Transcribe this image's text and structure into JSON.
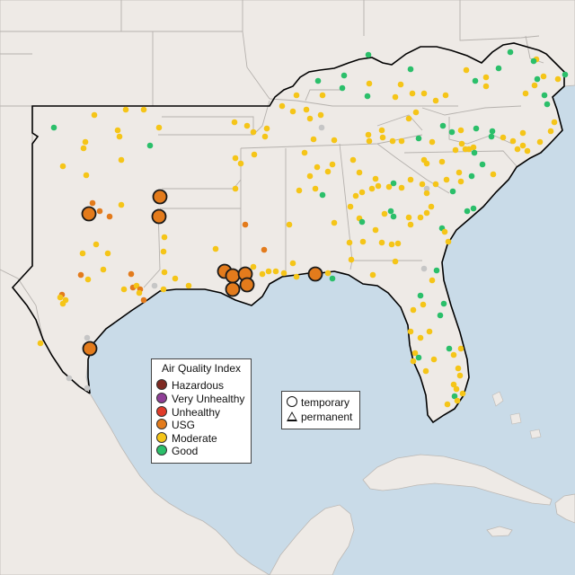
{
  "legend": {
    "title": "Air Quality Index",
    "categories": [
      {
        "label": "Hazardous",
        "color": "#7e2a22"
      },
      {
        "label": "Very Unhealthy",
        "color": "#8f3f97"
      },
      {
        "label": "Unhealthy",
        "color": "#e03b2a"
      },
      {
        "label": "USG",
        "color": "#e37b1c"
      },
      {
        "label": "Moderate",
        "color": "#f5c518"
      },
      {
        "label": "Good",
        "color": "#2bbf6a"
      }
    ]
  },
  "type_legend": {
    "items": [
      {
        "label": "temporary",
        "icon": "circle-icon"
      },
      {
        "label": "permanent",
        "icon": "triangle-icon"
      }
    ]
  },
  "colors": {
    "water": "#c9dbe8",
    "land": "#eeeae6",
    "land_outside": "#f1ede9",
    "border": "#b5b1ad",
    "region_outline": "#000000",
    "monitor_na": "#c6c6c6"
  }
}
